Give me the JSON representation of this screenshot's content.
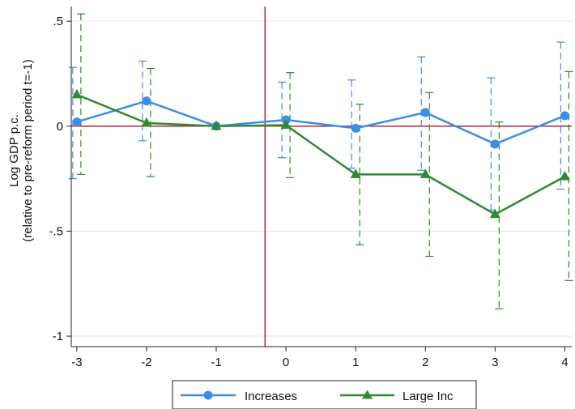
{
  "chart_data": {
    "type": "line",
    "title": "",
    "xlabel": "",
    "ylabel": [
      "Log GDP p.c.",
      "(relative to pre-reform period t=-1)"
    ],
    "x": [
      -3,
      -2,
      -1,
      0,
      1,
      2,
      3,
      4
    ],
    "x_tick_labels": [
      "-3",
      "-2",
      "-1",
      "0",
      "1",
      "2",
      "3",
      "4"
    ],
    "y_ticks": [
      0.5,
      0,
      -0.5,
      -1
    ],
    "y_tick_labels": [
      ".5",
      "0",
      "-.5",
      "-1"
    ],
    "xlim": [
      -3.08,
      4.1
    ],
    "ylim": [
      -1.05,
      0.57
    ],
    "grid": "horizontal",
    "reference_lines": {
      "y": 0,
      "x": -0.3,
      "color": "#b0243f"
    },
    "series": [
      {
        "name": "Increases",
        "color": "#3a8ee8",
        "marker": "circle",
        "values": [
          0.02,
          0.12,
          0.0,
          0.03,
          -0.01,
          0.065,
          -0.085,
          0.05
        ],
        "ci_low": [
          -0.25,
          -0.07,
          0.0,
          -0.15,
          -0.2,
          -0.21,
          -0.4,
          -0.3
        ],
        "ci_high": [
          0.28,
          0.31,
          0.0,
          0.21,
          0.22,
          0.33,
          0.23,
          0.4
        ]
      },
      {
        "name": "Large Inc",
        "color": "#2e8b2e",
        "marker": "triangle",
        "values": [
          0.15,
          0.015,
          0.0,
          0.005,
          -0.23,
          -0.23,
          -0.42,
          -0.24
        ],
        "ci_low": [
          -0.23,
          -0.24,
          0.0,
          -0.245,
          -0.565,
          -0.62,
          -0.87,
          -0.735
        ],
        "ci_high": [
          0.535,
          0.275,
          0.0,
          0.255,
          0.105,
          0.16,
          0.02,
          0.26
        ]
      }
    ],
    "legend": {
      "placement": "bottom"
    }
  }
}
